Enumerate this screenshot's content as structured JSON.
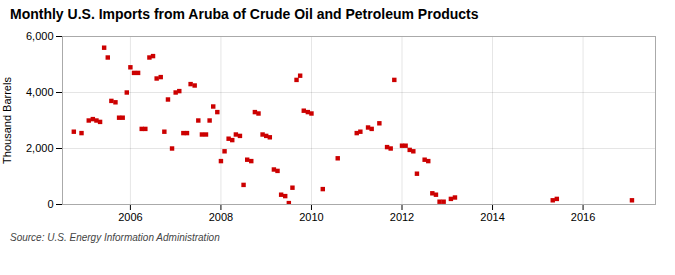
{
  "chart_data": {
    "type": "scatter",
    "title": "Monthly U.S. Imports from Aruba of Crude Oil and Petroleum Products",
    "ylabel": "Thousand Barrels",
    "annotations": [
      "Source: U.S. Energy Information Administration"
    ],
    "color": "#cc0000",
    "marker": "square",
    "grid": true,
    "xlim": [
      2004.5,
      2017.6
    ],
    "xticks": [
      2006,
      2008,
      2010,
      2012,
      2014,
      2016
    ],
    "ylim": [
      0,
      6000
    ],
    "yticks": [
      0,
      {
        "value": 2000,
        "label": "2,000"
      },
      {
        "value": 4000,
        "label": "4,000"
      },
      {
        "value": 6000,
        "label": "6,000"
      }
    ],
    "x": [
      2004.75,
      2004.92,
      2005.08,
      2005.17,
      2005.25,
      2005.33,
      2005.42,
      2005.5,
      2005.58,
      2005.67,
      2005.75,
      2005.83,
      2005.92,
      2006.0,
      2006.08,
      2006.17,
      2006.25,
      2006.33,
      2006.42,
      2006.5,
      2006.58,
      2006.67,
      2006.75,
      2006.83,
      2006.92,
      2007.0,
      2007.08,
      2007.17,
      2007.25,
      2007.33,
      2007.42,
      2007.5,
      2007.58,
      2007.67,
      2007.75,
      2007.83,
      2007.92,
      2008.0,
      2008.08,
      2008.17,
      2008.25,
      2008.33,
      2008.42,
      2008.5,
      2008.58,
      2008.67,
      2008.75,
      2008.83,
      2008.92,
      2009.0,
      2009.08,
      2009.17,
      2009.25,
      2009.33,
      2009.42,
      2009.5,
      2009.58,
      2009.67,
      2009.75,
      2009.83,
      2009.92,
      2010.0,
      2010.25,
      2010.58,
      2011.0,
      2011.08,
      2011.25,
      2011.33,
      2011.5,
      2011.67,
      2011.75,
      2011.83,
      2012.0,
      2012.08,
      2012.17,
      2012.25,
      2012.33,
      2012.5,
      2012.58,
      2012.67,
      2012.75,
      2012.83,
      2012.92,
      2013.08,
      2013.17,
      2015.33,
      2015.42,
      2017.08
    ],
    "values": [
      2600,
      2550,
      3000,
      3050,
      3000,
      2950,
      5600,
      5250,
      3700,
      3650,
      3100,
      3100,
      4000,
      4900,
      4700,
      4700,
      2700,
      2700,
      5250,
      5300,
      4500,
      4550,
      2600,
      3750,
      2000,
      4000,
      4050,
      2550,
      2550,
      4300,
      4250,
      3000,
      2500,
      2500,
      3000,
      3500,
      3300,
      1550,
      1900,
      2350,
      2300,
      2500,
      2450,
      700,
      1600,
      1550,
      3300,
      3250,
      2500,
      2450,
      2400,
      1250,
      1200,
      350,
      300,
      50,
      600,
      4450,
      4600,
      3350,
      3300,
      3250,
      550,
      1650,
      2550,
      2600,
      2750,
      2700,
      2900,
      2050,
      2000,
      4450,
      2100,
      2100,
      1950,
      1900,
      1100,
      1600,
      1550,
      400,
      350,
      100,
      100,
      200,
      250,
      150,
      200,
      150
    ]
  }
}
